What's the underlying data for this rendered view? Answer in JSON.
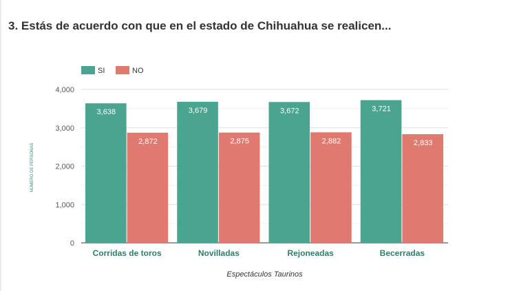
{
  "title": "3. Estás de acuerdo con que en el estado de Chihuahua se realicen...",
  "chart_data": {
    "type": "bar",
    "categories": [
      "Corridas de toros",
      "Novilladas",
      "Rejoneadas",
      "Becerradas"
    ],
    "series": [
      {
        "name": "SI",
        "color": "#4aa48f",
        "values": [
          3638,
          3679,
          3672,
          3721
        ],
        "labels": [
          "3,638",
          "3,679",
          "3,672",
          "3,721"
        ]
      },
      {
        "name": "NO",
        "color": "#e07a70",
        "values": [
          2872,
          2875,
          2882,
          2833
        ],
        "labels": [
          "2,872",
          "2,875",
          "2,882",
          "2,833"
        ]
      }
    ],
    "ylim": [
      0,
      4000
    ],
    "yticks": [
      0,
      1000,
      2000,
      3000,
      4000
    ],
    "ytick_labels": [
      "0",
      "1,000",
      "2,000",
      "3,000",
      "4,000"
    ],
    "xlabel": "Espectáculos Taurinos",
    "ylabel": "NÚMERO DE PERSONAS",
    "grid": true,
    "legend_position": "top-left"
  }
}
